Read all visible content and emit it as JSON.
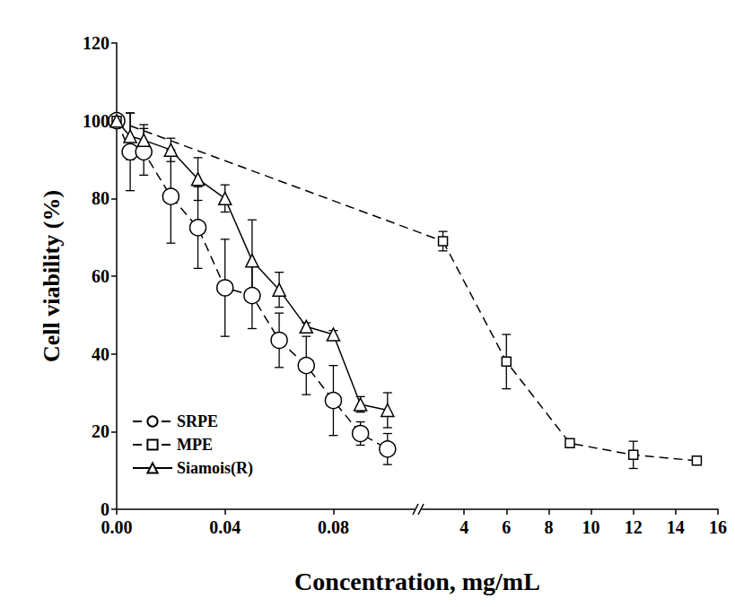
{
  "chart_data": {
    "type": "line",
    "x_label": "Concentration, mg/mL",
    "y_label": "Cell viability (%)",
    "xlim": [
      0,
      16
    ],
    "xbreak": [
      0.11,
      2
    ],
    "xticks": [
      {
        "value": 0,
        "label": "0.00"
      },
      0.04,
      0.08,
      4,
      6,
      8,
      10,
      12,
      14,
      16
    ],
    "ylim": [
      0,
      120
    ],
    "yticks": [
      0,
      20,
      40,
      60,
      80,
      100,
      120
    ],
    "grid": false,
    "legend": "lower left",
    "series": [
      {
        "name": "SRPE",
        "color": "#000000",
        "marker": "circle",
        "line_style": "dashed",
        "x": [
          0,
          0.005,
          0.01,
          0.02,
          0.03,
          0.04,
          0.05,
          0.06,
          0.07,
          0.08,
          0.09,
          0.1
        ],
        "values": [
          100,
          92,
          92,
          80.5,
          72.5,
          57,
          55,
          43.5,
          37,
          28,
          19.5,
          15.5
        ],
        "errors": [
          1,
          10,
          6,
          12,
          10.5,
          12.5,
          8.5,
          7,
          7.5,
          9,
          3,
          4
        ]
      },
      {
        "name": "MPE",
        "color": "#000000",
        "marker": "square",
        "line_style": "dashed",
        "x": [
          0,
          3,
          6,
          9,
          12,
          15
        ],
        "values": [
          100,
          69,
          38,
          17,
          14,
          12.5
        ],
        "errors": [
          1,
          2.5,
          7,
          1,
          3.5,
          1
        ]
      },
      {
        "name": "Siamois(R)",
        "color": "#000000",
        "marker": "triangle",
        "line_style": "solid",
        "x": [
          0,
          0.005,
          0.01,
          0.02,
          0.03,
          0.04,
          0.05,
          0.06,
          0.07,
          0.08,
          0.09,
          0.1
        ],
        "values": [
          100,
          96,
          95,
          92.5,
          85,
          80,
          64,
          56.5,
          47,
          45,
          27,
          25.5
        ],
        "errors": [
          1,
          6,
          4,
          3,
          5.5,
          3.5,
          10.5,
          4.5,
          1,
          1,
          2,
          4.5
        ]
      }
    ]
  }
}
